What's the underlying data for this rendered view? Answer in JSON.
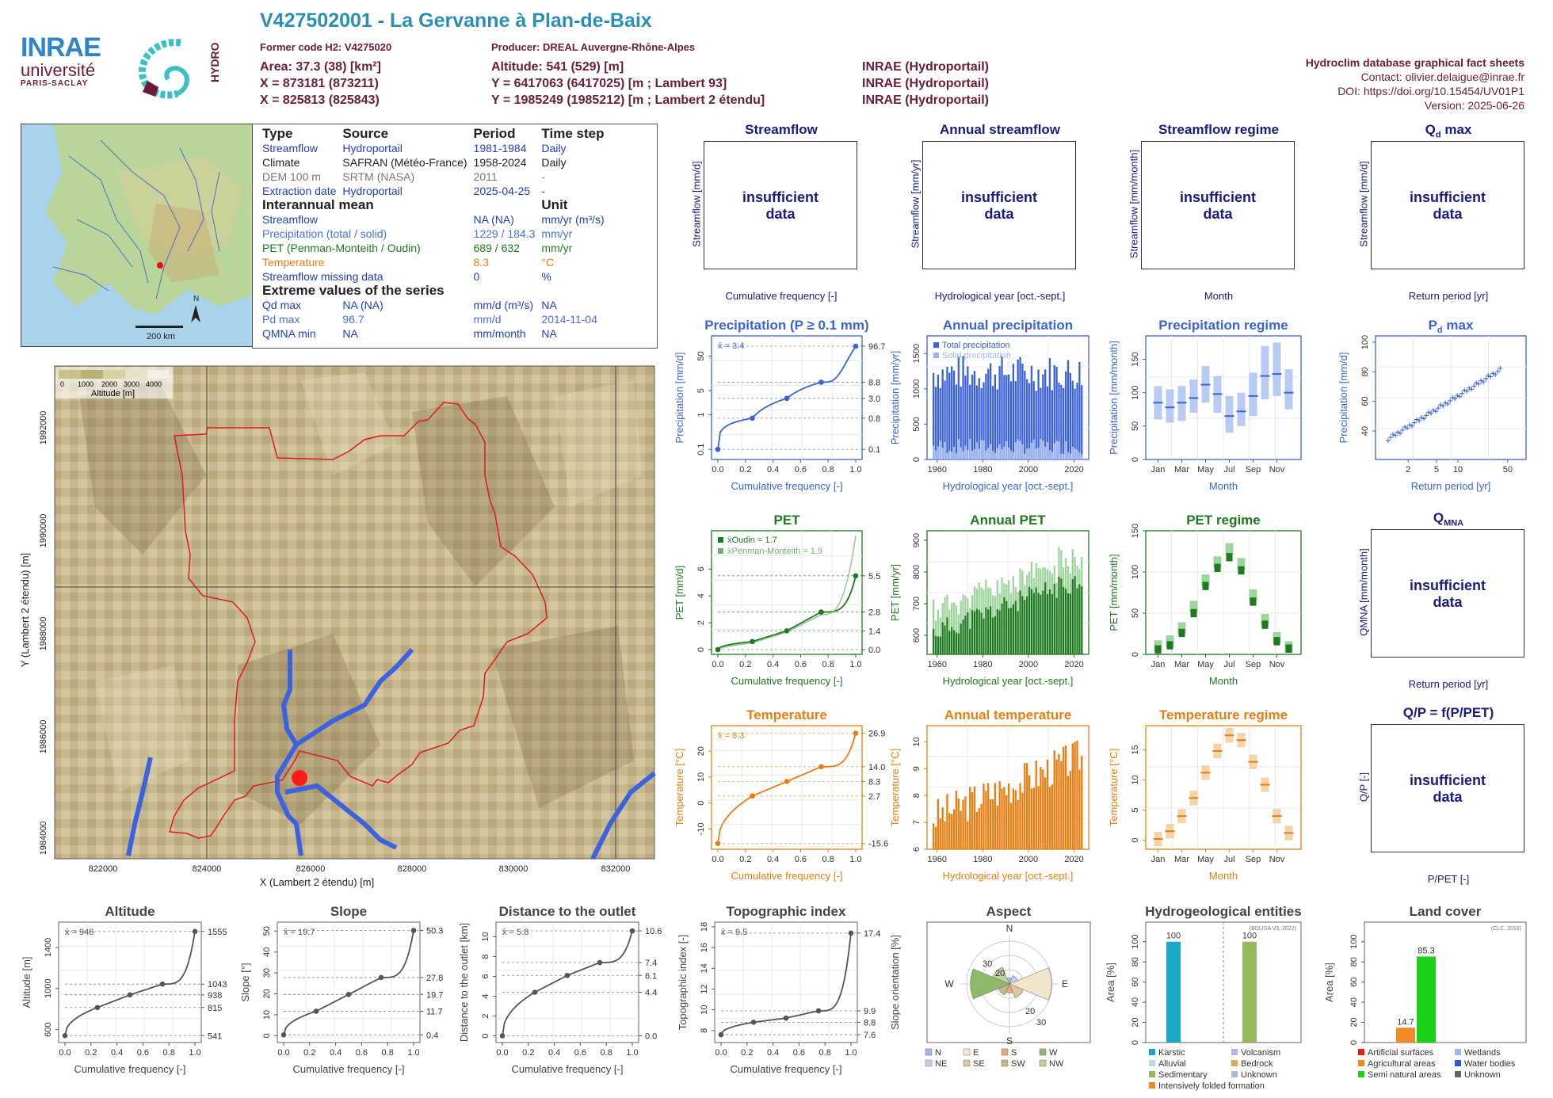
{
  "header": {
    "title": "V427502001 - La Gervanne à Plan-de-Baix",
    "former_code": "Former code H2: V4275020",
    "producer": "Producer: DREAL Auvergne-Rhône-Alpes",
    "area": "Area: 37.3 (38) [km²]",
    "x1": "X = 873181 (873211)",
    "x2": "X = 825813 (825843)",
    "altitude": "Altitude: 541 (529) [m]",
    "y1": "Y = 6417063 (6417025) [m ; Lambert 93]",
    "y2": "Y = 1985249 (1985212) [m ; Lambert 2 étendu]",
    "inrae1": "INRAE (Hydroportail)",
    "inrae2": "INRAE (Hydroportail)",
    "inrae3": "INRAE (Hydroportail)",
    "db_title": "Hydroclim database graphical fact sheets",
    "contact": "Contact: olivier.delaigue@inrae.fr",
    "doi": "DOI: https://doi.org/10.15454/UV01P1",
    "version": "Version: 2025-06-26"
  },
  "logos": {
    "inrae": "INRAE",
    "univ": "université",
    "univ2": "PARIS-SACLAY",
    "hydro": "HYDRO"
  },
  "minimap": {
    "scale": "200 km",
    "north": "N"
  },
  "info": {
    "h_type": "Type",
    "h_source": "Source",
    "h_period": "Period",
    "h_step": "Time step",
    "rows": [
      {
        "type": "Streamflow",
        "source": "Hydroportail",
        "period": "1981-1984",
        "step": "Daily",
        "color": "#1f3fbf"
      },
      {
        "type": "Climate",
        "source": "SAFRAN (Météo-France)",
        "period": "1958-2024",
        "step": "Daily",
        "color": "#222222"
      },
      {
        "type": "DEM 100 m",
        "source": "SRTM (NASA)",
        "period": "2011",
        "step": "-",
        "color": "#777777"
      },
      {
        "type": "Extraction date",
        "source": "Hydroportail",
        "period": "2025-04-25",
        "step": "-",
        "color": "#1f3fbf"
      }
    ],
    "h_mean": "Interannual mean",
    "h_unit": "Unit",
    "mean_rows": [
      {
        "name": "Streamflow",
        "value": "NA (NA)",
        "unit": "mm/yr (m³/s)",
        "color": "#1f3fbf"
      },
      {
        "name": "Precipitation (total / solid)",
        "value": "1229 / 184.3",
        "unit": "mm/yr",
        "color": "#4a6fe3"
      },
      {
        "name": "PET (Penman-Monteith / Oudin)",
        "value": "689 / 632",
        "unit": "mm/yr",
        "color": "#1e7a1e"
      },
      {
        "name": "Temperature",
        "value": "8.3",
        "unit": "°C",
        "color": "#e87d10"
      },
      {
        "name": "Streamflow missing data",
        "value": "0",
        "unit": "%",
        "color": "#1f3fbf"
      }
    ],
    "h_extreme": "Extreme values of the series",
    "ext_rows": [
      {
        "name": "Qd max",
        "value": "NA (NA)",
        "unit": "mm/d (m³/s)",
        "date": "NA",
        "color": "#1f3fbf"
      },
      {
        "name": "Pd max",
        "value": "96.7",
        "unit": "mm/d",
        "date": "2014-11-04",
        "color": "#4a6fe3"
      },
      {
        "name": "QMNA min",
        "value": "NA",
        "unit": "mm/month",
        "date": "NA",
        "color": "#1f3fbf"
      }
    ]
  },
  "map": {
    "legend_title": "Altitude [m]",
    "legend_ticks": [
      "0",
      "1000",
      "2000",
      "3000",
      "4000"
    ],
    "xlabel": "X (Lambert 2 étendu) [m]",
    "ylabel": "Y (Lambert 2 étendu) [m]",
    "xticks": [
      "822000",
      "824000",
      "826000",
      "828000",
      "830000",
      "832000"
    ],
    "yticks": [
      "1984000",
      "1986000",
      "1988000",
      "1990000",
      "1992000"
    ]
  },
  "panels": {
    "streamflow": {
      "title": "Streamflow",
      "ylabel": "Streamflow [mm/d]",
      "xlabel": "Cumulative frequency [-]",
      "msg1": "insufficient",
      "msg2": "data"
    },
    "annual_streamflow": {
      "title": "Annual streamflow",
      "ylabel": "Streamflow [mm/yr]",
      "xlabel": "Hydrological year [oct.-sept.]",
      "msg1": "insufficient",
      "msg2": "data"
    },
    "streamflow_regime": {
      "title": "Streamflow regime",
      "ylabel": "Streamflow [mm/month]",
      "xlabel": "Month",
      "msg1": "insufficient",
      "msg2": "data"
    },
    "qd_max": {
      "title": "Qd max",
      "ylabel": "Streamflow [mm/d]",
      "xlabel": "Return period [yr]",
      "msg1": "insufficient",
      "msg2": "data"
    },
    "qmna": {
      "title": "QMNA",
      "ylabel": "QMNA [mm/month]",
      "xlabel": "Return period [yr]",
      "msg1": "insufficient",
      "msg2": "data"
    },
    "qp": {
      "title": "Q/P = f(P/PET)",
      "ylabel": "Q/P [-]",
      "xlabel": "P/PET [-]",
      "msg1": "insufficient",
      "msg2": "data"
    }
  },
  "chart_data": [
    {
      "id": "precip_cdf",
      "type": "line",
      "title": "Precipitation (P ≥ 0.1 mm)",
      "xlabel": "Cumulative frequency [-]",
      "ylabel": "Precipitation [mm/d]",
      "yscale": "log",
      "mean_label": "x̄ = 3.4",
      "x": [
        0,
        0.25,
        0.5,
        0.75,
        1.0
      ],
      "y": [
        0.1,
        0.8,
        3.0,
        8.8,
        96.7
      ],
      "right_labels": [
        "96.7",
        "8.8",
        "3.0",
        "0.8",
        "0.1"
      ],
      "xticks": [
        "0.0",
        "0.2",
        "0.4",
        "0.6",
        "0.8",
        "1.0"
      ],
      "yticks": [
        "0.1",
        "1",
        "5",
        "50"
      ],
      "color": "#3b63d9"
    },
    {
      "id": "annual_precip",
      "type": "bar",
      "title": "Annual precipitation",
      "xlabel": "Hydrological year [oct.-sept.]",
      "ylabel": "Precipitation [mm/yr]",
      "legend": [
        "Total precipitation",
        "Solid precipitation"
      ],
      "xticks": [
        "1960",
        "1980",
        "2000",
        "2020"
      ],
      "yticks": [
        "0",
        "500",
        "1000",
        "1500"
      ],
      "ylim": [
        0,
        1750
      ],
      "total_mean": 1229,
      "solid_mean": 184.3,
      "color": "#3b63d9"
    },
    {
      "id": "precip_regime",
      "type": "bar",
      "title": "Precipitation regime",
      "xlabel": "Month",
      "ylabel": "Precipitation [mm/month]",
      "categories": [
        "Jan",
        "Feb",
        "Mar",
        "Apr",
        "May",
        "Jun",
        "Jul",
        "Aug",
        "Sep",
        "Oct",
        "Nov",
        "Dec"
      ],
      "xticks": [
        "Jan",
        "Mar",
        "May",
        "Jul",
        "Sep",
        "Nov"
      ],
      "median": [
        85,
        78,
        85,
        92,
        112,
        98,
        65,
        72,
        95,
        125,
        128,
        100
      ],
      "low": [
        60,
        55,
        58,
        70,
        85,
        70,
        40,
        50,
        65,
        90,
        95,
        75
      ],
      "high": [
        110,
        105,
        110,
        120,
        140,
        125,
        95,
        100,
        130,
        170,
        175,
        135
      ],
      "yticks": [
        "0",
        "50",
        "100",
        "150"
      ],
      "ylim": [
        0,
        185
      ],
      "color": "#3b63d9"
    },
    {
      "id": "pd_max",
      "type": "scatter",
      "title": "Pd max",
      "xlabel": "Return period [yr]",
      "ylabel": "Precipitation [mm/d]",
      "xticks": [
        "2",
        "5",
        "10",
        "50"
      ],
      "yticks": [
        "40",
        "60",
        "80",
        "100"
      ],
      "color": "#3b63d9"
    },
    {
      "id": "pet_cdf",
      "type": "line",
      "title": "PET",
      "xlabel": "Cumulative frequency [-]",
      "ylabel": "PET [mm/d]",
      "mean_oudin": "x̄Oudin = 1.7",
      "mean_pm": "x̄Penman-Monteith = 1.9",
      "x": [
        0,
        0.25,
        0.5,
        0.75,
        1.0
      ],
      "y": [
        0.0,
        0.6,
        1.4,
        2.8,
        5.5
      ],
      "right_labels": [
        "5.5",
        "2.8",
        "1.4",
        "0.0"
      ],
      "xticks": [
        "0.0",
        "0.2",
        "0.4",
        "0.6",
        "0.8",
        "1.0"
      ],
      "yticks": [
        "0",
        "2",
        "4",
        "6"
      ],
      "ylim": [
        0,
        8.5
      ],
      "color": "#1e7a1e"
    },
    {
      "id": "annual_pet",
      "type": "bar",
      "title": "Annual PET",
      "xlabel": "Hydrological year [oct.-sept.]",
      "ylabel": "PET [mm/yr]",
      "xticks": [
        "1960",
        "1980",
        "2000",
        "2020"
      ],
      "yticks": [
        "600",
        "700",
        "800",
        "900"
      ],
      "ylim": [
        540,
        930
      ],
      "color": "#1e7a1e"
    },
    {
      "id": "pet_regime",
      "type": "bar",
      "title": "PET regime",
      "xlabel": "Month",
      "ylabel": "PET [mm/month]",
      "categories": [
        "Jan",
        "Feb",
        "Mar",
        "Apr",
        "May",
        "Jun",
        "Jul",
        "Aug",
        "Sep",
        "Oct",
        "Nov",
        "Dec"
      ],
      "xticks": [
        "Jan",
        "Mar",
        "May",
        "Jul",
        "Sep",
        "Nov"
      ],
      "oudin": [
        6,
        11,
        26,
        50,
        83,
        105,
        118,
        102,
        64,
        36,
        16,
        7
      ],
      "pm": [
        10,
        16,
        32,
        58,
        90,
        112,
        128,
        110,
        72,
        42,
        20,
        9
      ],
      "yticks": [
        "0",
        "50",
        "100",
        "150"
      ],
      "ylim": [
        0,
        150
      ],
      "color": "#1e7a1e"
    },
    {
      "id": "temp_cdf",
      "type": "line",
      "title": "Temperature",
      "xlabel": "Cumulative frequency [-]",
      "ylabel": "Temperature [°C]",
      "mean_label": "x̄ = 8.3",
      "x": [
        0,
        0.25,
        0.5,
        0.75,
        1.0
      ],
      "y": [
        -15.6,
        2.7,
        8.3,
        14.0,
        26.9
      ],
      "right_labels": [
        "26.9",
        "14.0",
        "8.3",
        "2.7",
        "-15.6"
      ],
      "xticks": [
        "0.0",
        "0.2",
        "0.4",
        "0.6",
        "0.8",
        "1.0"
      ],
      "yticks": [
        "-10",
        "0",
        "10",
        "20"
      ],
      "ylim": [
        -16,
        28
      ],
      "color": "#e87d10"
    },
    {
      "id": "annual_temp",
      "type": "bar",
      "title": "Annual temperature",
      "xlabel": "Hydrological year [oct.-sept.]",
      "ylabel": "Temperature [°C]",
      "xticks": [
        "1960",
        "1980",
        "2000",
        "2020"
      ],
      "yticks": [
        "6",
        "7",
        "8",
        "9",
        "10"
      ],
      "ylim": [
        6,
        10.6
      ],
      "color": "#e87d10"
    },
    {
      "id": "temp_regime",
      "type": "bar",
      "title": "Temperature regime",
      "xlabel": "Month",
      "ylabel": "Temperature [°C]",
      "categories": [
        "Jan",
        "Feb",
        "Mar",
        "Apr",
        "May",
        "Jun",
        "Jul",
        "Aug",
        "Sep",
        "Oct",
        "Nov",
        "Dec"
      ],
      "xticks": [
        "Jan",
        "Mar",
        "May",
        "Jul",
        "Sep",
        "Nov"
      ],
      "median": [
        0.2,
        1.5,
        4.0,
        7.0,
        11.2,
        14.8,
        17.4,
        16.6,
        13.0,
        9.2,
        4.0,
        1.2
      ],
      "yticks": [
        "0",
        "5",
        "10",
        "15"
      ],
      "ylim": [
        -1.5,
        19
      ],
      "color": "#e87d10"
    },
    {
      "id": "altitude",
      "type": "line",
      "title": "Altitude",
      "xlabel": "Cumulative frequency [-]",
      "ylabel": "Altitude [m]",
      "mean_label": "x̄ = 948",
      "x": [
        0,
        0.25,
        0.5,
        0.75,
        1.0
      ],
      "y": [
        541,
        815,
        938,
        1043,
        1555
      ],
      "right_labels": [
        "1555",
        "1043",
        "938",
        "815",
        "541"
      ],
      "xticks": [
        "0.0",
        "0.2",
        "0.4",
        "0.6",
        "0.8",
        "1.0"
      ],
      "yticks": [
        "600",
        "1000",
        "1400"
      ],
      "ylim": [
        520,
        1600
      ]
    },
    {
      "id": "slope",
      "type": "line",
      "title": "Slope",
      "xlabel": "Cumulative frequency [-]",
      "ylabel": "Slope [°]",
      "mean_label": "x̄ = 19.7",
      "x": [
        0,
        0.25,
        0.5,
        0.75,
        1.0
      ],
      "y": [
        0.4,
        11.7,
        19.7,
        27.8,
        50.3
      ],
      "right_labels": [
        "50.3",
        "27.8",
        "19.7",
        "11.7",
        "0.4"
      ],
      "xticks": [
        "0.0",
        "0.2",
        "0.4",
        "0.6",
        "0.8",
        "1.0"
      ],
      "yticks": [
        "0",
        "10",
        "20",
        "30",
        "40",
        "50"
      ],
      "ylim": [
        -1,
        52
      ]
    },
    {
      "id": "distance",
      "type": "line",
      "title": "Distance to the outlet",
      "xlabel": "Cumulative frequency [-]",
      "ylabel": "Distance to the outlet [km]",
      "mean_label": "x̄ = 5.8",
      "x": [
        0,
        0.25,
        0.5,
        0.75,
        1.0
      ],
      "y": [
        0.0,
        4.4,
        6.1,
        7.4,
        10.6
      ],
      "right_labels": [
        "10.6",
        "7.4",
        "6.1",
        "4.4",
        "0.0"
      ],
      "xticks": [
        "0.0",
        "0.2",
        "0.4",
        "0.6",
        "0.8",
        "1.0"
      ],
      "yticks": [
        "0",
        "2",
        "4",
        "6",
        "8",
        "10"
      ],
      "ylim": [
        -0.2,
        11
      ]
    },
    {
      "id": "topo",
      "type": "line",
      "title": "Topographic index",
      "xlabel": "Cumulative frequency [-]",
      "ylabel": "Topographic index [-]",
      "mean_label": "x̄ = 9.5",
      "x": [
        0,
        0.25,
        0.5,
        0.75,
        1.0
      ],
      "y": [
        7.6,
        8.8,
        9.2,
        9.9,
        17.4
      ],
      "right_labels": [
        "17.4",
        "9.9",
        "8.8",
        "7.6"
      ],
      "xticks": [
        "0.0",
        "0.2",
        "0.4",
        "0.6",
        "0.8",
        "1.0"
      ],
      "yticks": [
        "8",
        "10",
        "12",
        "14",
        "16",
        "18"
      ],
      "ylim": [
        7.3,
        18
      ]
    },
    {
      "id": "aspect",
      "type": "pie",
      "title": "Aspect",
      "ylabel": "Slope orientation [%]",
      "directions": [
        "N",
        "NE",
        "E",
        "SE",
        "S",
        "SW",
        "W",
        "NW"
      ],
      "values": [
        4,
        6,
        28,
        10,
        6,
        8,
        26,
        12
      ],
      "rings": [
        "10",
        "20",
        "30"
      ],
      "legend": [
        "N",
        "E",
        "S",
        "W",
        "NE",
        "SE",
        "SW",
        "NW"
      ]
    },
    {
      "id": "hydrogeo",
      "type": "bar",
      "title": "Hydrogeological entities",
      "ylabel": "Area [%]",
      "source": "(BDLISA V3, 2022)",
      "values": [
        100,
        100
      ],
      "labels": [
        "100",
        "100"
      ],
      "yticks": [
        "0",
        "20",
        "40",
        "60",
        "80",
        "100"
      ],
      "legend": [
        "Karstic",
        "Volcanism",
        "Alluvial",
        "Bedrock",
        "Sedimentary",
        "Unknown",
        "Intensively folded formation"
      ]
    },
    {
      "id": "landcover",
      "type": "bar",
      "title": "Land cover",
      "ylabel": "Area [%]",
      "source": "(CLC, 2018)",
      "values": [
        14.7,
        85.3
      ],
      "labels": [
        "14.7",
        "85.3"
      ],
      "yticks": [
        "0",
        "20",
        "40",
        "60",
        "80",
        "100"
      ],
      "legend": [
        "Artificial surfaces",
        "Wetlands",
        "Agricultural areas",
        "Water bodies",
        "Semi natural areas",
        "Unknown"
      ]
    }
  ]
}
